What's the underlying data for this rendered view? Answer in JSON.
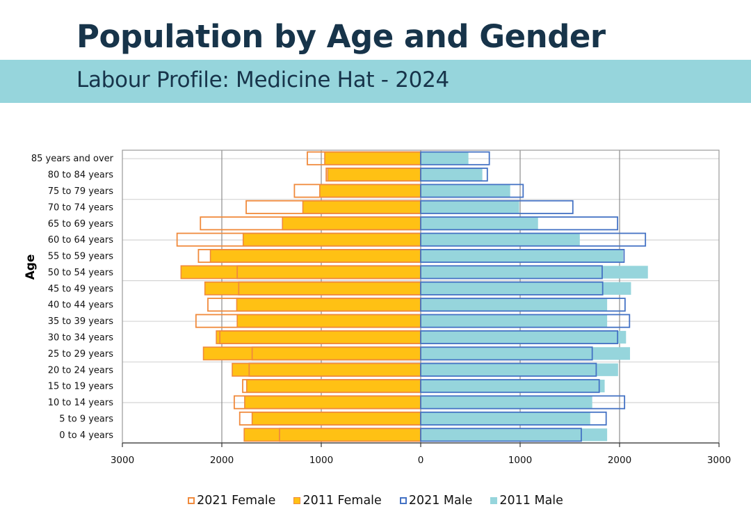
{
  "header": {
    "title": "Population by Age and Gender",
    "subtitle": "Labour Profile:  Medicine Hat - 2024"
  },
  "colors": {
    "title": "#17344a",
    "banner": "#96d5dc",
    "female_2021_outline": "#f08a3c",
    "female_2011_fill": "#ffc114",
    "female_2011_stroke": "#f08a3c",
    "male_2021_outline": "#4472c4",
    "male_2011_fill": "#96d5dc"
  },
  "chart_data": {
    "type": "bar",
    "orientation": "horizontal-population-pyramid",
    "title": "",
    "xlabel": "",
    "ylabel": "Age",
    "xlim": [
      -3000,
      3000
    ],
    "x_ticks": [
      -3000,
      -2000,
      -1000,
      0,
      1000,
      2000,
      3000
    ],
    "x_tick_labels": [
      "3000",
      "2000",
      "1000",
      "0",
      "1000",
      "2000",
      "3000"
    ],
    "grid": true,
    "legend_position": "bottom",
    "categories": [
      "85 years and over",
      "80 to 84 years",
      "75 to 79 years",
      "70 to 74 years",
      "65 to 69 years",
      "60 to 64 years",
      "55 to 59 years",
      "50 to 54 years",
      "45 to 49 years",
      "40 to 44 years",
      "35 to 39 years",
      "30 to 34 years",
      "25 to 29 years",
      "20 to 24 years",
      "15 to 19 years",
      "10 to 14 years",
      "5 to 9 years",
      "0 to 4 years"
    ],
    "series": [
      {
        "name": "2021 Female",
        "side": "left",
        "style": "outline",
        "values": [
          1140,
          950,
          1270,
          1755,
          2215,
          2450,
          2235,
          1845,
          1830,
          2140,
          2260,
          2020,
          1695,
          1725,
          1790,
          1875,
          1820,
          1420
        ]
      },
      {
        "name": "2011 Female",
        "side": "left",
        "style": "fill",
        "values": [
          965,
          935,
          1015,
          1185,
          1390,
          1785,
          2115,
          2410,
          2170,
          1850,
          1845,
          2055,
          2185,
          1895,
          1750,
          1770,
          1695,
          1775
        ]
      },
      {
        "name": "2021 Male",
        "side": "right",
        "style": "outline",
        "values": [
          690,
          670,
          1030,
          1530,
          1980,
          2260,
          2045,
          1825,
          1830,
          2055,
          2100,
          1980,
          1725,
          1765,
          1795,
          2050,
          1865,
          1615
        ]
      },
      {
        "name": "2011 Male",
        "side": "right",
        "style": "fill",
        "values": [
          480,
          620,
          900,
          990,
          1180,
          1600,
          2035,
          2285,
          2115,
          1875,
          1875,
          2065,
          2105,
          1985,
          1850,
          1725,
          1705,
          1875
        ]
      }
    ]
  },
  "legend": [
    {
      "label": "2021 Female",
      "key": "female_2021"
    },
    {
      "label": "2011 Female",
      "key": "female_2011"
    },
    {
      "label": "2021 Male",
      "key": "male_2021"
    },
    {
      "label": "2011 Male",
      "key": "male_2011"
    }
  ]
}
